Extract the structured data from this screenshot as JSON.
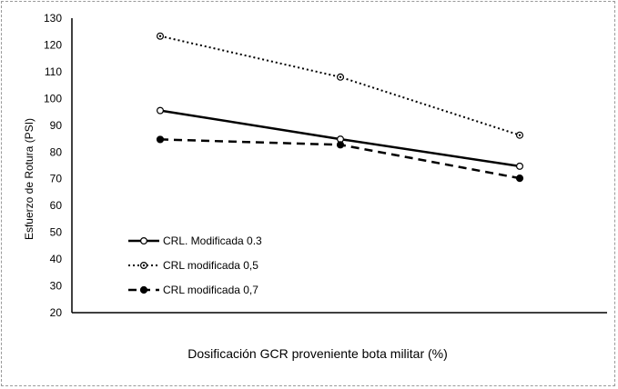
{
  "chart_data": {
    "type": "line",
    "title": "",
    "xlabel": "Dosificación GCR proveniente bota militar (%)",
    "ylabel": "Esfuerzo de Rotura (PSI)",
    "x_ticks": [],
    "ylim": [
      20,
      130
    ],
    "yticks": [
      20,
      30,
      40,
      50,
      60,
      70,
      80,
      90,
      100,
      110,
      120,
      130
    ],
    "grid": false,
    "legend_position": "bottom-left",
    "series": [
      {
        "name": "CRL. Modificada 0.3",
        "values": [
          95.5,
          84.8,
          74.7
        ],
        "style": "solid",
        "marker": "open-circle",
        "color": "#000000"
      },
      {
        "name": "CRL modificada 0,5",
        "values": [
          123.3,
          108.0,
          86.3
        ],
        "style": "dotted",
        "marker": "circle-dot",
        "color": "#000000"
      },
      {
        "name": "CRL modificada 0,7",
        "values": [
          84.7,
          82.7,
          70.2
        ],
        "style": "dashed",
        "marker": "filled-circle",
        "color": "#000000"
      }
    ]
  }
}
